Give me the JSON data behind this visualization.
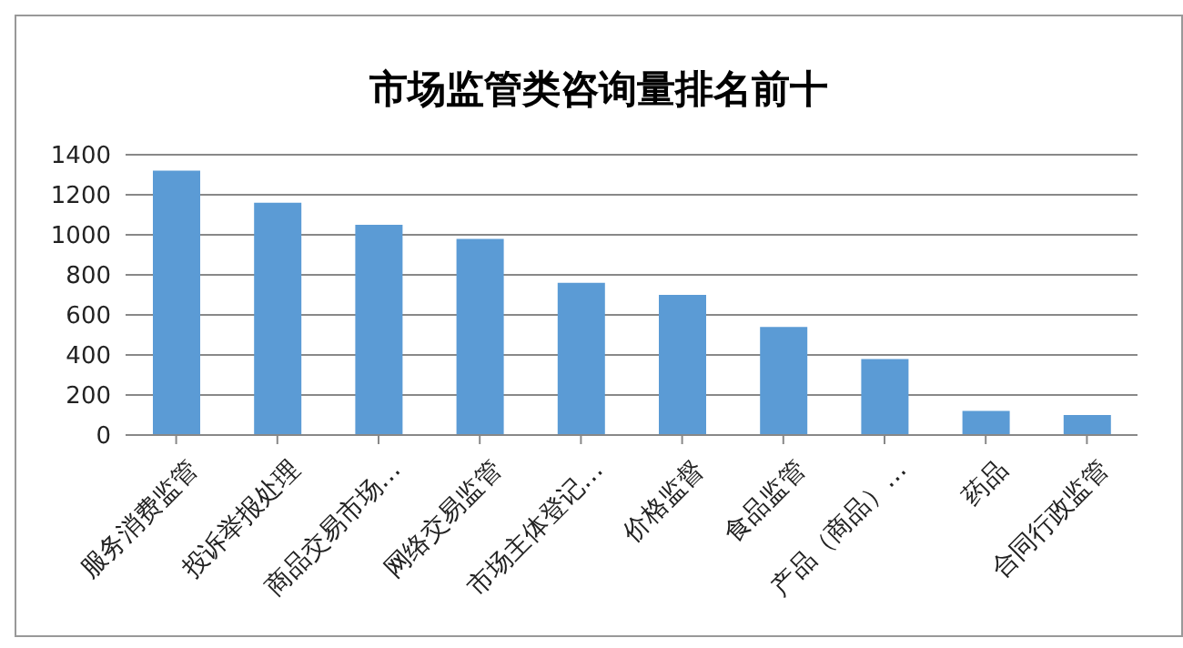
{
  "chart_data": {
    "type": "bar",
    "title": "市场监管类咨询量排名前十",
    "categories": [
      "服务消费监管",
      "投诉举报处理",
      "商品交易市场…",
      "网络交易监管",
      "市场主体登记…",
      "价格监督",
      "食品监管",
      "产品（商品）…",
      "药品",
      "合同行政监管"
    ],
    "values": [
      1320,
      1160,
      1050,
      980,
      760,
      700,
      540,
      380,
      120,
      100
    ],
    "color": "#5b9bd5",
    "ylim": [
      0,
      1400
    ],
    "yticks": [
      0,
      200,
      400,
      600,
      800,
      1000,
      1200,
      1400
    ],
    "grid": "y"
  }
}
